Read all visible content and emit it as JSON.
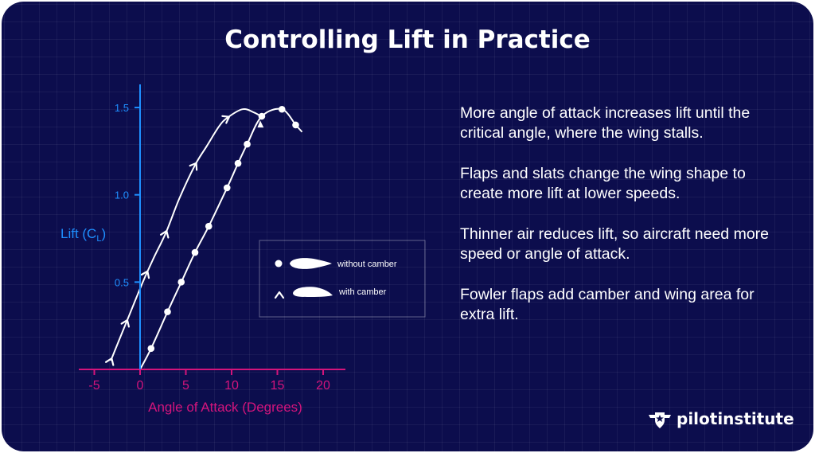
{
  "page": {
    "title": "Controlling Lift in Practice",
    "notes": [
      "More angle of attack increases lift until the critical angle, where the wing stalls.",
      "Flaps and slats change the wing shape to create more lift at lower speeds.",
      "Thinner air reduces lift, so aircraft need more speed or angle of attack.",
      "Fowler flaps add camber and wing area for extra lift."
    ],
    "brand": "pilotinstitute",
    "colors": {
      "background": "#0c0d4d",
      "y_axis": "#1e8fff",
      "x_axis": "#d4147c",
      "series": "#ffffff"
    }
  },
  "chart_data": {
    "type": "line",
    "title": "",
    "xlabel": "Angle of Attack (Degrees)",
    "ylabel": "Lift (CL)",
    "ylabel_main": "Lift (C",
    "ylabel_sub": "L",
    "ylabel_close": ")",
    "xlim": [
      -5,
      22
    ],
    "ylim": [
      0,
      1.6
    ],
    "xticks": [
      -5,
      0,
      5,
      10,
      15,
      20
    ],
    "yticks": [
      0.5,
      1.0,
      1.5
    ],
    "ytick_labels": [
      "0.5",
      "1.0",
      "1.5"
    ],
    "legend_position": "center",
    "series": [
      {
        "name": "without camber",
        "marker": "circle",
        "x": [
          0,
          1.2,
          3,
          4.5,
          6,
          7.5,
          9.5,
          10.7,
          11.7,
          13.3,
          15.5,
          17
        ],
        "y": [
          0,
          0.12,
          0.33,
          0.5,
          0.67,
          0.82,
          1.04,
          1.18,
          1.29,
          1.45,
          1.49,
          1.4
        ],
        "markers_x": [
          1.2,
          3,
          4.5,
          6,
          7.5,
          9.5,
          10.7,
          11.7,
          13.3,
          15.5,
          17
        ],
        "markers_y": [
          0.12,
          0.33,
          0.5,
          0.67,
          0.82,
          1.04,
          1.18,
          1.29,
          1.45,
          1.49,
          1.4
        ],
        "tail_x": [
          17,
          17.7
        ],
        "tail_y": [
          1.4,
          1.36
        ]
      },
      {
        "name": "with camber",
        "marker": "chevron",
        "x": [
          -3.2,
          -1.5,
          0.3,
          1.5,
          2.8,
          4.3,
          6,
          7.3,
          8.6,
          9.5,
          11.2,
          12.5,
          13.5
        ],
        "y": [
          0.05,
          0.27,
          0.5,
          0.64,
          0.78,
          0.98,
          1.17,
          1.28,
          1.39,
          1.44,
          1.49,
          1.47,
          1.44
        ],
        "markers_x": [
          -3.2,
          -1.5,
          0.7,
          2.8,
          6,
          9.5
        ],
        "markers_y": [
          0.05,
          0.27,
          0.55,
          0.78,
          1.17,
          1.44
        ],
        "end_arrow": {
          "x": 13.5,
          "y": 1.44
        }
      }
    ]
  }
}
